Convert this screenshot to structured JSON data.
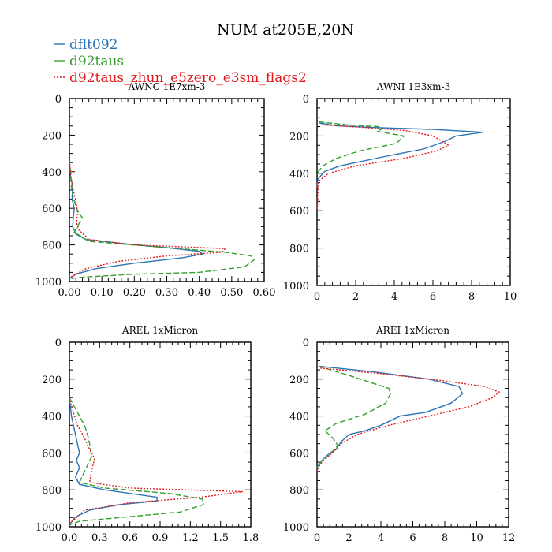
{
  "figure": {
    "title": "NUM at205E,20N"
  },
  "legend": [
    {
      "label": "dflt092",
      "color": "#2b73b6",
      "dash": ""
    },
    {
      "label": "d92taus",
      "color": "#33a02c",
      "dash": "7,3"
    },
    {
      "label": "d92taus_zhun_e5zero_e3sm_flags2",
      "color": "#e31a1c",
      "dash": "2,2"
    }
  ],
  "chart_data": [
    {
      "type": "line",
      "title": "AWNC  1E7xm-3",
      "xlim": [
        0,
        0.6
      ],
      "ylim": [
        0,
        1000
      ],
      "y_inverted": true,
      "xticks": [
        0,
        0.1,
        0.2,
        0.3,
        0.4,
        0.5,
        0.6
      ],
      "xtick_labels": [
        "0.00",
        "0.10",
        "0.20",
        "0.30",
        "0.40",
        "0.50",
        "0.60"
      ],
      "yticks": [
        0,
        200,
        400,
        600,
        800,
        1000
      ],
      "ytick_labels": [
        "0",
        "200",
        "400",
        "600",
        "800",
        "1000"
      ],
      "series": [
        {
          "name": "dflt092",
          "x": [
            0,
            0.003,
            0.01,
            0.008,
            0.015,
            0.012,
            0.01,
            0.02,
            0.05,
            0.15,
            0.3,
            0.4,
            0.41,
            0.35,
            0.2,
            0.08,
            0.02,
            0
          ],
          "y": [
            340,
            420,
            480,
            550,
            600,
            650,
            700,
            740,
            770,
            790,
            815,
            835,
            850,
            870,
            900,
            930,
            960,
            985
          ]
        },
        {
          "name": "d92taus",
          "x": [
            0,
            0.004,
            0.005,
            0.012,
            0.02,
            0.03,
            0.04,
            0.015,
            0.06,
            0.3,
            0.48,
            0.56,
            0.57,
            0.54,
            0.4,
            0.2,
            0.05,
            0
          ],
          "y": [
            340,
            400,
            470,
            540,
            590,
            630,
            650,
            730,
            780,
            815,
            840,
            860,
            880,
            920,
            950,
            960,
            975,
            985
          ]
        },
        {
          "name": "d92taus_zhun_e5zero_e3sm_flags2",
          "x": [
            0,
            0.005,
            0.012,
            0.02,
            0.025,
            0.022,
            0.03,
            0.06,
            0.2,
            0.48,
            0.47,
            0.3,
            0.15,
            0.05,
            0
          ],
          "y": [
            340,
            430,
            500,
            560,
            620,
            680,
            720,
            770,
            800,
            820,
            840,
            860,
            890,
            930,
            980
          ]
        }
      ]
    },
    {
      "type": "line",
      "title": "AWNI  1E3xm-3",
      "xlim": [
        0,
        10
      ],
      "ylim": [
        0,
        1000
      ],
      "y_inverted": true,
      "xticks": [
        0,
        2,
        4,
        6,
        8,
        10
      ],
      "xtick_labels": [
        "0",
        "2",
        "4",
        "6",
        "8",
        "10"
      ],
      "yticks": [
        0,
        200,
        400,
        600,
        800,
        1000
      ],
      "ytick_labels": [
        "0",
        "200",
        "400",
        "600",
        "800",
        "1000"
      ],
      "series": [
        {
          "name": "dflt092",
          "x": [
            0.1,
            1.0,
            3.0,
            6.0,
            8.6,
            7.2,
            6.6,
            5.5,
            3.5,
            1.2,
            0.4,
            0.05,
            0
          ],
          "y": [
            130,
            145,
            155,
            165,
            180,
            200,
            230,
            270,
            310,
            360,
            390,
            430,
            470
          ]
        },
        {
          "name": "d92taus",
          "x": [
            0.1,
            1.5,
            3.2,
            3.4,
            3.1,
            4.5,
            4.1,
            2.2,
            1.0,
            0.3,
            0
          ],
          "y": [
            125,
            140,
            150,
            160,
            175,
            200,
            240,
            280,
            320,
            360,
            400
          ]
        },
        {
          "name": "d92taus_zhun_e5zero_e3sm_flags2",
          "x": [
            0.2,
            2.5,
            4.5,
            6.0,
            6.5,
            6.8,
            6.2,
            4.5,
            2.0,
            0.6,
            0.1,
            0.05,
            0
          ],
          "y": [
            140,
            155,
            170,
            200,
            230,
            250,
            280,
            320,
            360,
            400,
            440,
            500,
            600
          ]
        }
      ]
    },
    {
      "type": "line",
      "title": "AREL  1xMicron",
      "xlim": [
        0,
        1.8
      ],
      "ylim": [
        0,
        1000
      ],
      "y_inverted": true,
      "xticks": [
        0,
        0.3,
        0.6,
        0.9,
        1.2,
        1.5,
        1.8
      ],
      "xtick_labels": [
        "0.0",
        "0.3",
        "0.6",
        "0.9",
        "1.2",
        "1.5",
        "1.8"
      ],
      "yticks": [
        0,
        200,
        400,
        600,
        800,
        1000
      ],
      "ytick_labels": [
        "0",
        "200",
        "400",
        "600",
        "800",
        "1000"
      ],
      "series": [
        {
          "name": "dflt092",
          "x": [
            0,
            0.02,
            0.04,
            0.06,
            0.08,
            0.1,
            0.07,
            0.1,
            0.06,
            0.1,
            0.35,
            0.87,
            0.87,
            0.5,
            0.2,
            0.05,
            0
          ],
          "y": [
            300,
            400,
            450,
            500,
            550,
            600,
            640,
            680,
            730,
            770,
            800,
            840,
            860,
            880,
            910,
            950,
            990
          ]
        },
        {
          "name": "d92taus",
          "x": [
            0,
            0.05,
            0.1,
            0.15,
            0.18,
            0.2,
            0.22,
            0.15,
            0.1,
            0.35,
            1.0,
            1.32,
            1.33,
            1.1,
            0.5,
            0.1,
            0
          ],
          "y": [
            300,
            350,
            400,
            450,
            500,
            550,
            620,
            700,
            760,
            790,
            820,
            850,
            880,
            920,
            950,
            970,
            990
          ]
        },
        {
          "name": "d92taus_zhun_e5zero_e3sm_flags2",
          "x": [
            0,
            0.04,
            0.08,
            0.15,
            0.2,
            0.25,
            0.22,
            0.2,
            0.6,
            1.72,
            1.3,
            0.6,
            0.15,
            0
          ],
          "y": [
            300,
            380,
            450,
            520,
            580,
            630,
            700,
            760,
            790,
            810,
            840,
            870,
            910,
            985
          ]
        }
      ]
    },
    {
      "type": "line",
      "title": "AREI  1xMicron",
      "xlim": [
        0,
        12
      ],
      "ylim": [
        0,
        1000
      ],
      "y_inverted": true,
      "xticks": [
        0,
        2,
        4,
        6,
        8,
        10,
        12
      ],
      "xtick_labels": [
        "0",
        "2",
        "4",
        "6",
        "8",
        "10",
        "12"
      ],
      "yticks": [
        0,
        200,
        400,
        600,
        800,
        1000
      ],
      "ytick_labels": [
        "0",
        "200",
        "400",
        "600",
        "800",
        "1000"
      ],
      "series": [
        {
          "name": "dflt092",
          "x": [
            0.1,
            3.5,
            7.0,
            8.9,
            9.1,
            8.4,
            6.8,
            5.2,
            4.0,
            3.0,
            2.0,
            1.5,
            1.2,
            0.8,
            0.3,
            0
          ],
          "y": [
            130,
            160,
            200,
            240,
            280,
            330,
            380,
            400,
            450,
            480,
            500,
            540,
            580,
            600,
            640,
            680
          ]
        },
        {
          "name": "d92taus",
          "x": [
            0.1,
            2.0,
            4.5,
            4.6,
            4.3,
            3.0,
            1.2,
            0.5,
            1.0,
            1.3,
            0.8,
            0.2,
            0
          ],
          "y": [
            130,
            180,
            250,
            280,
            330,
            390,
            440,
            480,
            520,
            560,
            610,
            650,
            680
          ]
        },
        {
          "name": "d92taus_zhun_e5zero_e3sm_flags2",
          "x": [
            0.2,
            4.0,
            8.0,
            10.5,
            11.4,
            11.0,
            9.5,
            7.0,
            4.5,
            2.5,
            1.5,
            1.2,
            0.7,
            0.2,
            0
          ],
          "y": [
            140,
            170,
            210,
            240,
            270,
            300,
            350,
            400,
            450,
            500,
            550,
            580,
            620,
            660,
            700
          ]
        }
      ]
    }
  ]
}
